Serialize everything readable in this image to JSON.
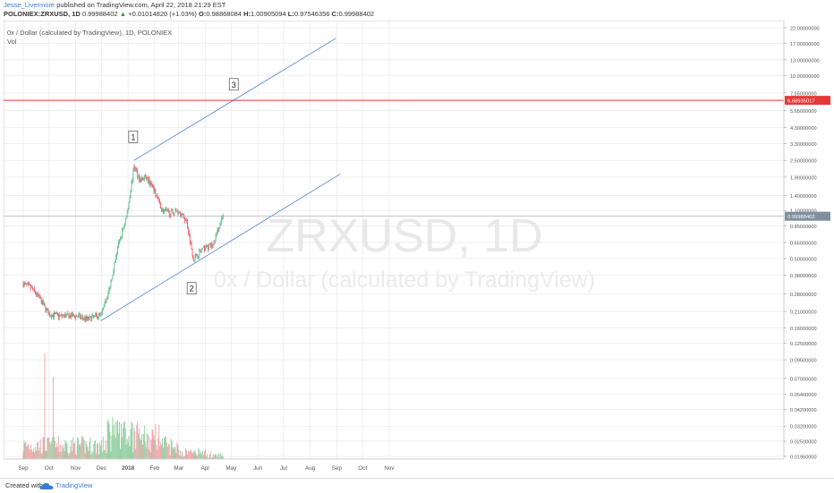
{
  "header": {
    "author": "Jesse_Livermore",
    "published": "published on TradingView.com, April 22, 2018 21:29 EST",
    "symbol": "POLONIEX:ZRXUSD, 1D",
    "last": "0.99988402",
    "change_arrow": "▲",
    "change": "+0.01014820 (+1.03%)",
    "o_label": "O:",
    "o": "0.98868084",
    "h_label": "H:",
    "h": "1.00905094",
    "l_label": "L:",
    "l": "0.97546356",
    "c_label": "C:",
    "c": "0.99988402"
  },
  "legend": {
    "series": "0x / Dollar (calculated by TradingView), 1D, POLONIEX",
    "vol": "Vol"
  },
  "watermark": {
    "symbol": "ZRXUSD, 1D",
    "name": "0x / Dollar (calculated by TradingView)"
  },
  "footer": {
    "created_with": "Created with",
    "brand": "TradingView",
    "brand_icon": "tradingview-cloud-icon"
  },
  "chart_data": {
    "type": "candlestick",
    "x_ticks": [
      "Sep",
      "Oct",
      "Nov",
      "Dec",
      "2018",
      "Feb",
      "Mar",
      "Apr",
      "May",
      "Jun",
      "Jul",
      "Aug",
      "Sep",
      "Oct",
      "Nov"
    ],
    "price_ticks": [
      "22.00000000",
      "17.00000000",
      "13.00000000",
      "10.00000000",
      "7.55000000",
      "5.65000000",
      "4.30000000",
      "3.30000000",
      "2.50000000",
      "1.90000000",
      "1.40000000",
      "1.10000000",
      "0.85000000",
      "0.65000000",
      "0.50000000",
      "0.38000000",
      "0.28000000",
      "0.21000000",
      "0.16000000",
      "0.12500000",
      "0.09500000",
      "0.07000000",
      "0.05400000",
      "0.04200000",
      "0.03200000",
      "0.02500000",
      "0.01950000"
    ],
    "y_scale": "log",
    "annotations": [
      "1",
      "2",
      "3"
    ],
    "horizontal_line": {
      "value": "6.68935017",
      "color": "#e53935"
    },
    "last_price": {
      "value": "0.99988402",
      "color": "#7f8fa0"
    },
    "price_points": [
      {
        "date": "2017-09-01",
        "price": 0.33
      },
      {
        "date": "2017-09-10",
        "price": 0.31
      },
      {
        "date": "2017-09-20",
        "price": 0.26
      },
      {
        "date": "2017-10-01",
        "price": 0.2
      },
      {
        "date": "2017-10-15",
        "price": 0.195
      },
      {
        "date": "2017-11-01",
        "price": 0.195
      },
      {
        "date": "2017-11-15",
        "price": 0.185
      },
      {
        "date": "2017-12-01",
        "price": 0.2
      },
      {
        "date": "2017-12-10",
        "price": 0.3
      },
      {
        "date": "2017-12-20",
        "price": 0.6
      },
      {
        "date": "2017-12-31",
        "price": 1.05
      },
      {
        "date": "2018-01-08",
        "price": 2.3
      },
      {
        "date": "2018-01-15",
        "price": 1.8
      },
      {
        "date": "2018-01-22",
        "price": 1.9
      },
      {
        "date": "2018-02-01",
        "price": 1.5
      },
      {
        "date": "2018-02-10",
        "price": 1.1
      },
      {
        "date": "2018-02-20",
        "price": 1.05
      },
      {
        "date": "2018-03-01",
        "price": 1.1
      },
      {
        "date": "2018-03-10",
        "price": 0.92
      },
      {
        "date": "2018-03-18",
        "price": 0.5
      },
      {
        "date": "2018-03-25",
        "price": 0.55
      },
      {
        "date": "2018-04-01",
        "price": 0.6
      },
      {
        "date": "2018-04-10",
        "price": 0.62
      },
      {
        "date": "2018-04-16",
        "price": 0.82
      },
      {
        "date": "2018-04-22",
        "price": 1.0
      }
    ],
    "trendlines": [
      {
        "name": "upper",
        "from": {
          "date": "2018-01-08",
          "price": 2.5
        },
        "to": {
          "date": "2018-08-31",
          "price": 18.5
        }
      },
      {
        "name": "lower",
        "from": {
          "date": "2017-11-30",
          "price": 0.18
        },
        "to": {
          "date": "2018-09-05",
          "price": 2.0
        }
      }
    ],
    "volume_ticks": [],
    "colors": {
      "up": "#53b987",
      "down": "#eb4d5c",
      "up_vol": "#8fcf9f",
      "down_vol": "#f0a0a6",
      "trend": "#4a7fd6",
      "grid": "#e6e6e6"
    }
  }
}
